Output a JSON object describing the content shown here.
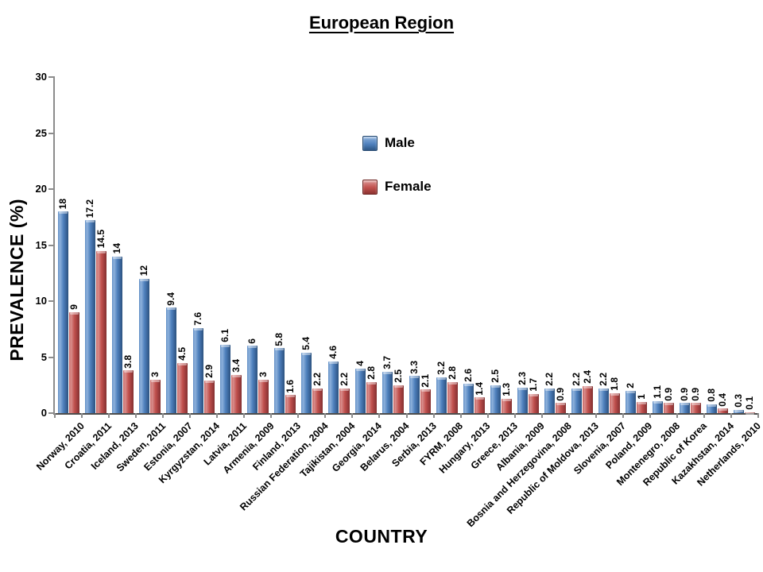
{
  "title": "European Region",
  "legend": {
    "position": "center-upper-inside",
    "items": [
      {
        "label": "Male",
        "color": "#4f81bd"
      },
      {
        "label": "Female",
        "color": "#c0504d"
      }
    ]
  },
  "chart_data": {
    "type": "bar",
    "title": "European Region",
    "xlabel": "COUNTRY",
    "ylabel": "PREVALENCE (%)",
    "ylim": [
      0,
      30
    ],
    "yticks": [
      0,
      5,
      10,
      15,
      20,
      25,
      30
    ],
    "grid": false,
    "bar_labels_rotated_vertical": true,
    "categories": [
      "Norway, 2010",
      "Croatia, 2011",
      "Iceland, 2013",
      "Sweden, 2011",
      "Estonia, 2007",
      "Kyrgyzstan, 2014",
      "Latvia, 2011",
      "Armenia, 2009",
      "Finland, 2013",
      "Russian Federation, 2004",
      "Tajikistan, 2004",
      "Georgia, 2014",
      "Belarus, 2004",
      "Serbia, 2013",
      "FYRM, 2008",
      "Hungary, 2013",
      "Greece, 2013",
      "Albania, 2009",
      "Bosnia and Herzegovina, 2008",
      "Republic of Moldova, 2013",
      "Slovenia, 2007",
      "Poland, 2009",
      "Montenegro, 2008",
      "Republic of Korea",
      "Kazakhstan, 2014",
      "Netherlands, 2010"
    ],
    "series": [
      {
        "name": "Male",
        "color": "#4f81bd",
        "values": [
          18,
          17.2,
          14,
          12,
          9.4,
          7.6,
          6.1,
          6,
          5.8,
          5.4,
          4.6,
          4,
          3.7,
          3.3,
          3.2,
          2.6,
          2.5,
          2.3,
          2.2,
          2.2,
          2.2,
          2,
          1.1,
          0.9,
          0.8,
          0.3
        ]
      },
      {
        "name": "Female",
        "color": "#c0504d",
        "values": [
          9,
          14.5,
          3.8,
          3,
          4.5,
          2.9,
          3.4,
          3,
          1.6,
          2.2,
          2.2,
          2.8,
          2.5,
          2.1,
          2.8,
          1.4,
          1.3,
          1.7,
          0.9,
          2.4,
          1.8,
          1,
          0.9,
          0.9,
          0.4,
          0.1
        ]
      }
    ]
  }
}
